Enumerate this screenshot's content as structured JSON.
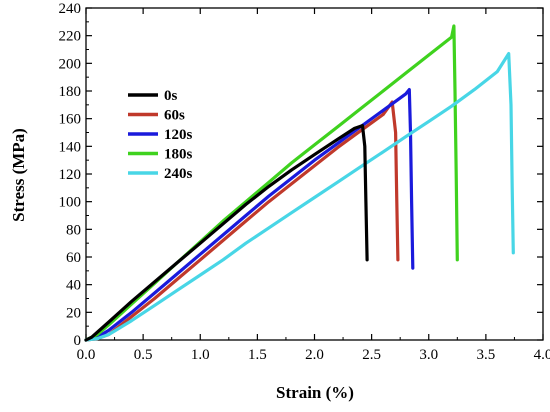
{
  "chart_data": {
    "type": "line",
    "title": "",
    "xlabel": "Strain (%)",
    "ylabel": "Stress (MPa)",
    "xlim": [
      0,
      4.0
    ],
    "ylim": [
      0,
      240
    ],
    "xticks": [
      0,
      0.5,
      1.0,
      1.5,
      2.0,
      2.5,
      3.0,
      3.5,
      4.0
    ],
    "xtick_labels": [
      "0.0",
      "0.5",
      "1.0",
      "1.5",
      "2.0",
      "2.5",
      "3.0",
      "3.5",
      "4.0"
    ],
    "yticks": [
      0,
      20,
      40,
      60,
      80,
      100,
      120,
      140,
      160,
      180,
      200,
      220,
      240
    ],
    "ytick_labels": [
      "0",
      "20",
      "40",
      "60",
      "80",
      "100",
      "120",
      "140",
      "160",
      "180",
      "200",
      "220",
      "240"
    ],
    "grid": false,
    "legend_position": "top-left",
    "series": [
      {
        "name": "0s",
        "color": "#000000",
        "points": [
          [
            0.0,
            0
          ],
          [
            0.05,
            2
          ],
          [
            0.2,
            13
          ],
          [
            0.4,
            28
          ],
          [
            0.6,
            42
          ],
          [
            0.8,
            56
          ],
          [
            1.0,
            70
          ],
          [
            1.2,
            84
          ],
          [
            1.4,
            98
          ],
          [
            1.6,
            111
          ],
          [
            1.8,
            123
          ],
          [
            2.0,
            134
          ],
          [
            2.2,
            145
          ],
          [
            2.35,
            153
          ],
          [
            2.42,
            155
          ],
          [
            2.44,
            140
          ],
          [
            2.45,
            100
          ],
          [
            2.46,
            58
          ]
        ]
      },
      {
        "name": "60s",
        "color": "#c0392b",
        "points": [
          [
            0.0,
            0
          ],
          [
            0.1,
            1
          ],
          [
            0.2,
            4
          ],
          [
            0.4,
            17
          ],
          [
            0.6,
            30
          ],
          [
            0.8,
            44
          ],
          [
            1.0,
            58
          ],
          [
            1.2,
            72
          ],
          [
            1.4,
            86
          ],
          [
            1.6,
            100
          ],
          [
            1.8,
            113
          ],
          [
            2.0,
            126
          ],
          [
            2.2,
            139
          ],
          [
            2.4,
            151
          ],
          [
            2.6,
            163
          ],
          [
            2.68,
            172
          ],
          [
            2.71,
            150
          ],
          [
            2.72,
            100
          ],
          [
            2.73,
            58
          ]
        ]
      },
      {
        "name": "120s",
        "color": "#1a1adc",
        "points": [
          [
            0.0,
            0
          ],
          [
            0.1,
            2
          ],
          [
            0.2,
            7
          ],
          [
            0.4,
            20
          ],
          [
            0.6,
            34
          ],
          [
            0.8,
            48
          ],
          [
            1.0,
            62
          ],
          [
            1.2,
            76
          ],
          [
            1.4,
            90
          ],
          [
            1.6,
            104
          ],
          [
            1.8,
            117
          ],
          [
            2.0,
            130
          ],
          [
            2.2,
            142
          ],
          [
            2.4,
            154
          ],
          [
            2.6,
            166
          ],
          [
            2.8,
            178
          ],
          [
            2.83,
            181
          ],
          [
            2.84,
            150
          ],
          [
            2.85,
            100
          ],
          [
            2.86,
            52
          ]
        ]
      },
      {
        "name": "180s",
        "color": "#3fd21e",
        "points": [
          [
            0.0,
            0
          ],
          [
            0.1,
            4
          ],
          [
            0.2,
            11
          ],
          [
            0.4,
            26
          ],
          [
            0.6,
            41
          ],
          [
            0.8,
            56
          ],
          [
            1.0,
            71
          ],
          [
            1.2,
            86
          ],
          [
            1.4,
            100
          ],
          [
            1.6,
            114
          ],
          [
            1.8,
            128
          ],
          [
            2.0,
            141
          ],
          [
            2.2,
            154
          ],
          [
            2.4,
            167
          ],
          [
            2.6,
            180
          ],
          [
            2.8,
            193
          ],
          [
            3.0,
            206
          ],
          [
            3.2,
            219
          ],
          [
            3.22,
            227
          ],
          [
            3.23,
            180
          ],
          [
            3.24,
            120
          ],
          [
            3.25,
            58
          ]
        ]
      },
      {
        "name": "240s",
        "color": "#48d6e6",
        "points": [
          [
            0.0,
            0
          ],
          [
            0.1,
            1
          ],
          [
            0.2,
            4
          ],
          [
            0.4,
            14
          ],
          [
            0.6,
            25
          ],
          [
            0.8,
            36
          ],
          [
            1.0,
            47
          ],
          [
            1.2,
            58
          ],
          [
            1.4,
            70
          ],
          [
            1.6,
            81
          ],
          [
            1.8,
            92
          ],
          [
            2.0,
            103
          ],
          [
            2.2,
            114
          ],
          [
            2.4,
            125
          ],
          [
            2.6,
            136
          ],
          [
            2.8,
            147
          ],
          [
            3.0,
            158
          ],
          [
            3.2,
            169
          ],
          [
            3.4,
            181
          ],
          [
            3.6,
            194
          ],
          [
            3.7,
            207
          ],
          [
            3.72,
            170
          ],
          [
            3.73,
            110
          ],
          [
            3.74,
            63
          ]
        ]
      }
    ]
  }
}
